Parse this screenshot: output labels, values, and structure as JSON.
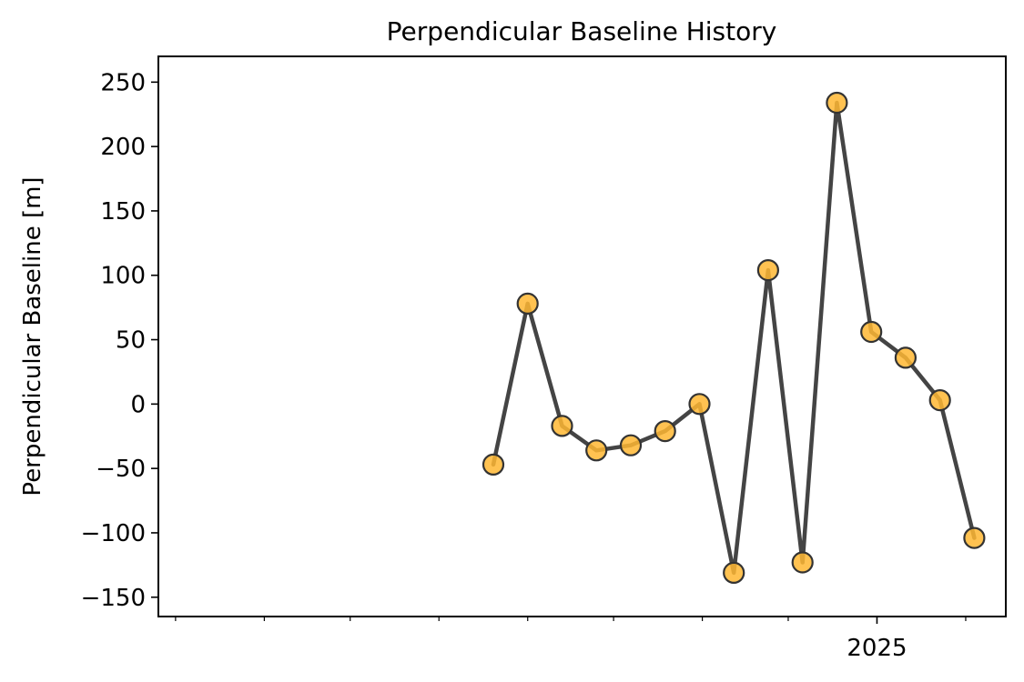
{
  "chart_data": {
    "type": "line",
    "title": "Perpendicular Baseline History",
    "xlabel": "",
    "ylabel": "Perpendicular Baseline [m]",
    "xlim": [
      "2024-04-25",
      "2025-02-15"
    ],
    "ylim": [
      -165,
      270
    ],
    "grid": false,
    "legend": "none",
    "x_major_ticks": [
      {
        "date": "2025-01-01",
        "label": "2025"
      }
    ],
    "x_minor_ticks": [
      "2024-05-01",
      "2024-06-01",
      "2024-07-01",
      "2024-08-01",
      "2024-09-01",
      "2024-10-01",
      "2024-11-01",
      "2024-12-01",
      "2025-02-01"
    ],
    "y_ticks": [
      -150,
      -100,
      -50,
      0,
      50,
      100,
      150,
      200,
      250
    ],
    "y_tick_labels": [
      "−150",
      "−100",
      "−50",
      "0",
      "50",
      "100",
      "150",
      "200",
      "250"
    ],
    "series": [
      {
        "line_color": "#444444",
        "marker_color": "#ffb732",
        "marker_edge": "#333333",
        "points": [
          {
            "x": "2024-08-20",
            "y": -47
          },
          {
            "x": "2024-09-01",
            "y": 78
          },
          {
            "x": "2024-09-13",
            "y": -17
          },
          {
            "x": "2024-09-25",
            "y": -36
          },
          {
            "x": "2024-10-07",
            "y": -32
          },
          {
            "x": "2024-10-19",
            "y": -21
          },
          {
            "x": "2024-10-31",
            "y": 0
          },
          {
            "x": "2024-11-12",
            "y": -131
          },
          {
            "x": "2024-11-24",
            "y": 104
          },
          {
            "x": "2024-12-06",
            "y": -123
          },
          {
            "x": "2024-12-18",
            "y": 234
          },
          {
            "x": "2024-12-30",
            "y": 56
          },
          {
            "x": "2025-01-11",
            "y": 36
          },
          {
            "x": "2025-01-23",
            "y": 3
          },
          {
            "x": "2025-02-04",
            "y": -104
          }
        ]
      }
    ]
  }
}
